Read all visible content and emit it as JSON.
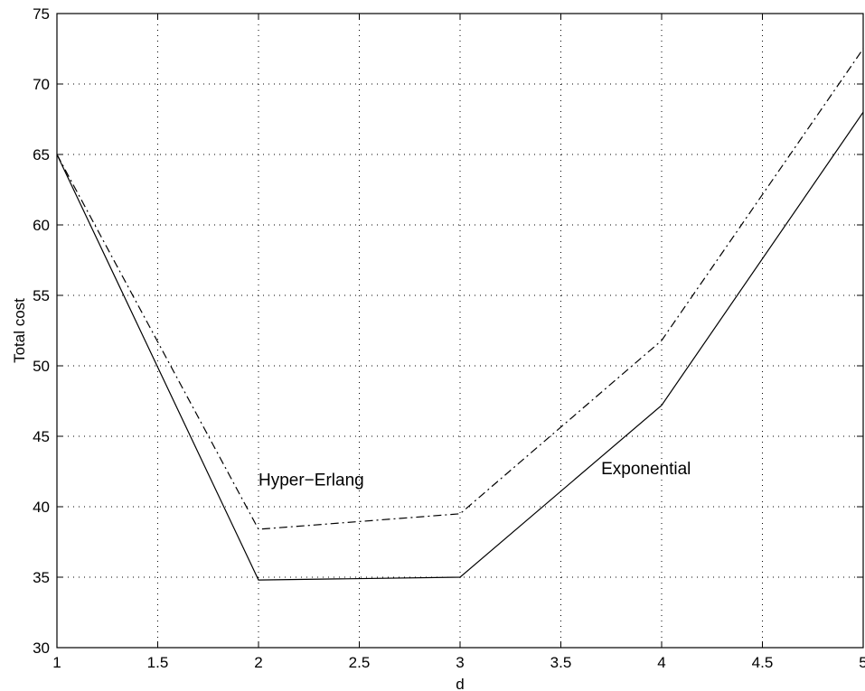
{
  "chart_data": {
    "type": "line",
    "title": "",
    "xlabel": "d",
    "ylabel": "Total cost",
    "xlim": [
      1,
      5
    ],
    "ylim": [
      30,
      75
    ],
    "xticks": [
      1,
      1.5,
      2,
      2.5,
      3,
      3.5,
      4,
      4.5,
      5
    ],
    "xtick_labels": [
      "1",
      "1.5",
      "2",
      "2.5",
      "3",
      "3.5",
      "4",
      "4.5",
      "5"
    ],
    "yticks": [
      30,
      35,
      40,
      45,
      50,
      55,
      60,
      65,
      70,
      75
    ],
    "ytick_labels": [
      "30",
      "35",
      "40",
      "45",
      "50",
      "55",
      "60",
      "65",
      "70",
      "75"
    ],
    "grid": true,
    "x": [
      1,
      2,
      3,
      4,
      5
    ],
    "series": [
      {
        "key": "hyper",
        "values": [
          65,
          38.4,
          39.5,
          51.8,
          72.5
        ],
        "line_style": "dash-dot",
        "color": "#000000"
      },
      {
        "key": "exponential",
        "values": [
          65,
          34.8,
          35,
          47.2,
          68
        ]
      }
    ],
    "annotations": [
      {
        "key": "hyper-label",
        "text": "Hyper−Erlang",
        "x": 2.0,
        "y": 41.5
      },
      {
        "key": "exp-label",
        "text": "Exponential",
        "x": 3.7,
        "y": 42.3
      }
    ]
  }
}
